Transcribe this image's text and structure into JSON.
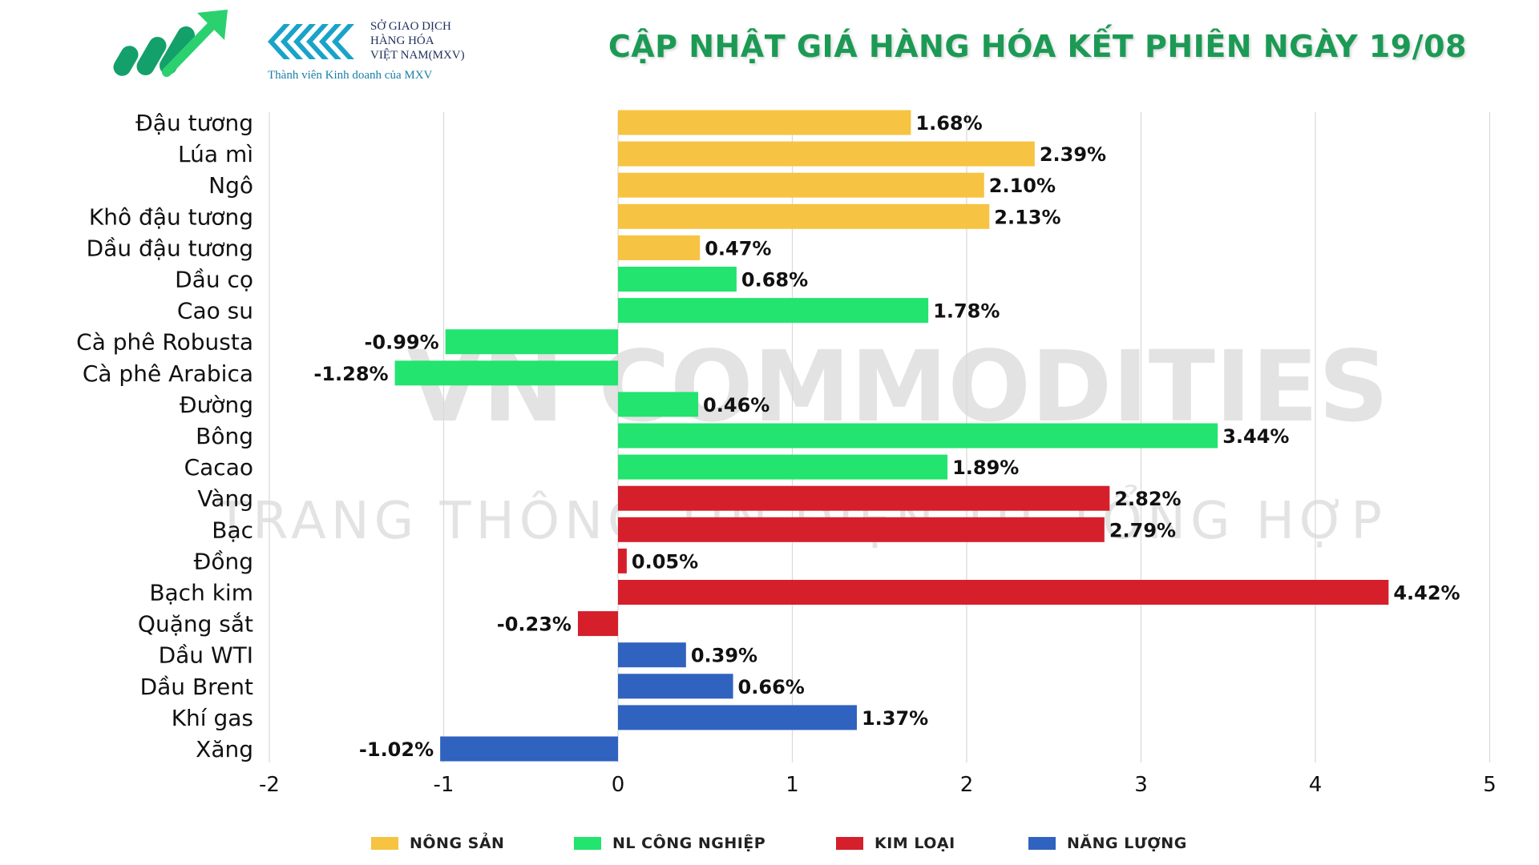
{
  "header": {
    "title": "CẬP NHẬT GIÁ HÀNG HÓA KẾT PHIÊN NGÀY 19/08",
    "mxv_lines": [
      "SỞ GIAO DỊCH",
      "HÀNG HÓA",
      "VIỆT NAM(MXV)"
    ],
    "mxv_tagline": "Thành viên Kinh doanh của MXV",
    "title_color": "#1c9a55"
  },
  "watermark": {
    "line1": "VN COMMODITIES",
    "line2": "TRANG THÔNG TIN ĐIỆN TỬ TỔNG HỢP"
  },
  "colors": {
    "nong_san": "#F6C342",
    "nl_cong_nghiep": "#22E46F",
    "kim_loai": "#D51F2B",
    "nang_luong": "#3062BF"
  },
  "chart_data": {
    "type": "bar",
    "orientation": "horizontal",
    "title": "",
    "xlabel": "",
    "ylabel": "",
    "xlim": [
      -2,
      5
    ],
    "x_ticks": [
      -2,
      -1,
      0,
      1,
      2,
      3,
      4,
      5
    ],
    "grid": "vertical",
    "legend_position": "bottom",
    "categories": [
      "Đậu tương",
      "Lúa mì",
      "Ngô",
      "Khô đậu tương",
      "Dầu đậu tương",
      "Dầu cọ",
      "Cao su",
      "Cà phê Robusta",
      "Cà phê Arabica",
      "Đường",
      "Bông",
      "Cacao",
      "Vàng",
      "Bạc",
      "Đồng",
      "Bạch kim",
      "Quặng sắt",
      "Dầu WTI",
      "Dầu Brent",
      "Khí gas",
      "Xăng"
    ],
    "values": [
      1.68,
      2.39,
      2.1,
      2.13,
      0.47,
      0.68,
      1.78,
      -0.99,
      -1.28,
      0.46,
      3.44,
      1.89,
      2.82,
      2.79,
      0.05,
      4.42,
      -0.23,
      0.39,
      0.66,
      1.37,
      -1.02
    ],
    "value_labels": [
      "1.68%",
      "2.39%",
      "2.10%",
      "2.13%",
      "0.47%",
      "0.68%",
      "1.78%",
      "-0.99%",
      "-1.28%",
      "0.46%",
      "3.44%",
      "1.89%",
      "2.82%",
      "2.79%",
      "0.05%",
      "4.42%",
      "-0.23%",
      "0.39%",
      "0.66%",
      "1.37%",
      "-1.02%"
    ],
    "groups": [
      "nong_san",
      "nong_san",
      "nong_san",
      "nong_san",
      "nong_san",
      "nl_cong_nghiep",
      "nl_cong_nghiep",
      "nl_cong_nghiep",
      "nl_cong_nghiep",
      "nl_cong_nghiep",
      "nl_cong_nghiep",
      "nl_cong_nghiep",
      "kim_loai",
      "kim_loai",
      "kim_loai",
      "kim_loai",
      "kim_loai",
      "nang_luong",
      "nang_luong",
      "nang_luong",
      "nang_luong"
    ],
    "legend": [
      {
        "key": "nong_san",
        "label": "NÔNG SẢN"
      },
      {
        "key": "nl_cong_nghiep",
        "label": "NL CÔNG NGHIỆP"
      },
      {
        "key": "kim_loai",
        "label": "KIM LOẠI"
      },
      {
        "key": "nang_luong",
        "label": "NĂNG LƯỢNG"
      }
    ]
  }
}
